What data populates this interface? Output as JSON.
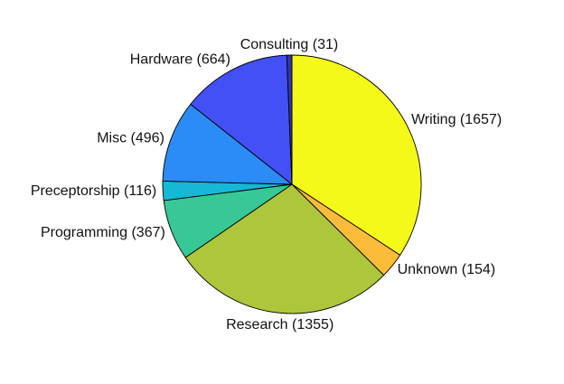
{
  "chart_data": {
    "type": "pie",
    "title": "",
    "slices": [
      {
        "label": "Writing (1657)",
        "value": 1657,
        "color": "#f5f91a"
      },
      {
        "label": "Unknown (154)",
        "value": 154,
        "color": "#fdbb3a"
      },
      {
        "label": "Research (1355)",
        "value": 1355,
        "color": "#adc63b"
      },
      {
        "label": "Programming (367)",
        "value": 367,
        "color": "#38c796"
      },
      {
        "label": "Preceptorship (116)",
        "value": 116,
        "color": "#16b8d6"
      },
      {
        "label": "Misc (496)",
        "value": 496,
        "color": "#2b8bf7"
      },
      {
        "label": "Hardware (664)",
        "value": 664,
        "color": "#4350f6"
      },
      {
        "label": "Consulting (31)",
        "value": 31,
        "color": "#3434a8"
      }
    ],
    "start": "top",
    "direction": "clockwise",
    "legend": "none"
  }
}
